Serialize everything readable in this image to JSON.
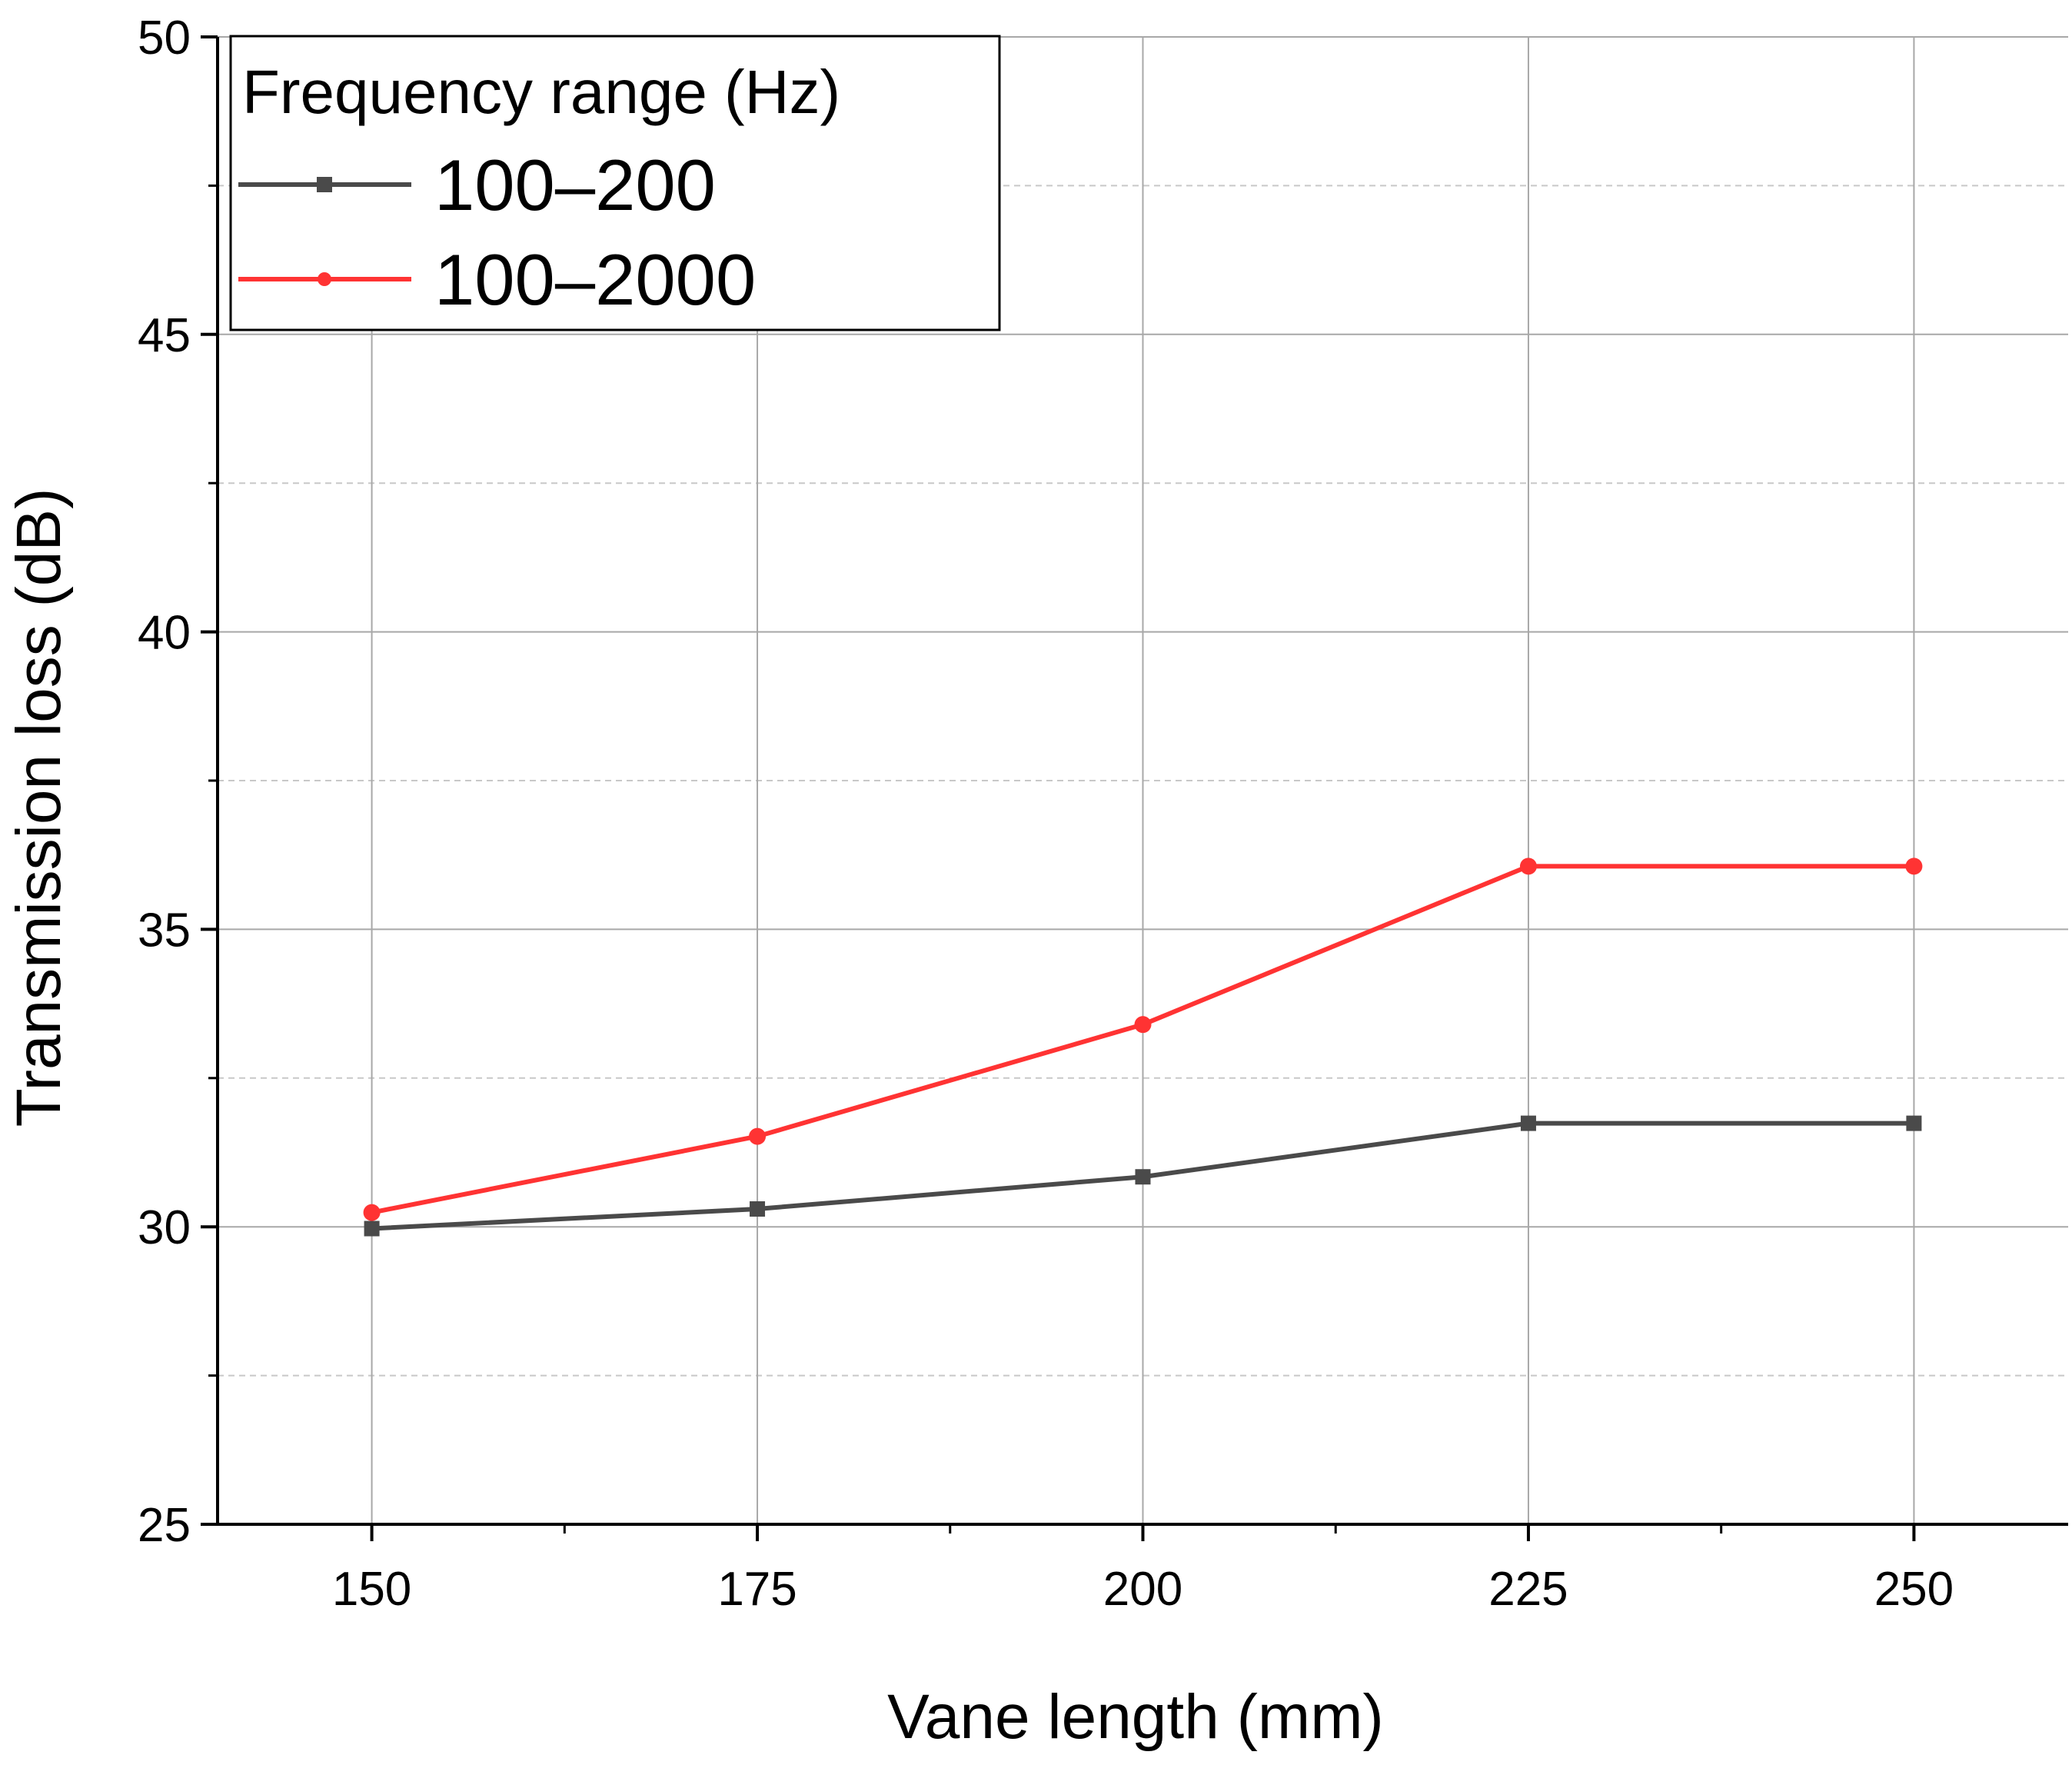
{
  "chart_data": {
    "type": "line",
    "title": "",
    "xlabel": "Vane length (mm)",
    "ylabel": "Transmission loss (dB)",
    "x": [
      150,
      175,
      200,
      225,
      250
    ],
    "x_ticks": [
      "150",
      "175",
      "200",
      "225",
      "250"
    ],
    "xlim": [
      140,
      260
    ],
    "ylim": [
      25,
      50
    ],
    "y_ticks": [
      "25",
      "30",
      "35",
      "40",
      "45",
      "50"
    ],
    "grid": true,
    "legend": {
      "title": "Frequency range (Hz)",
      "placement": "top-left"
    },
    "series": [
      {
        "name": "100–200",
        "values": [
          29.97,
          30.3,
          30.84,
          31.74,
          31.74
        ],
        "color": "#4a4a4a",
        "marker": "square"
      },
      {
        "name": "100–2000",
        "values": [
          30.24,
          31.52,
          33.4,
          36.06,
          36.06
        ],
        "color": "#ff3333",
        "marker": "circle"
      }
    ]
  }
}
